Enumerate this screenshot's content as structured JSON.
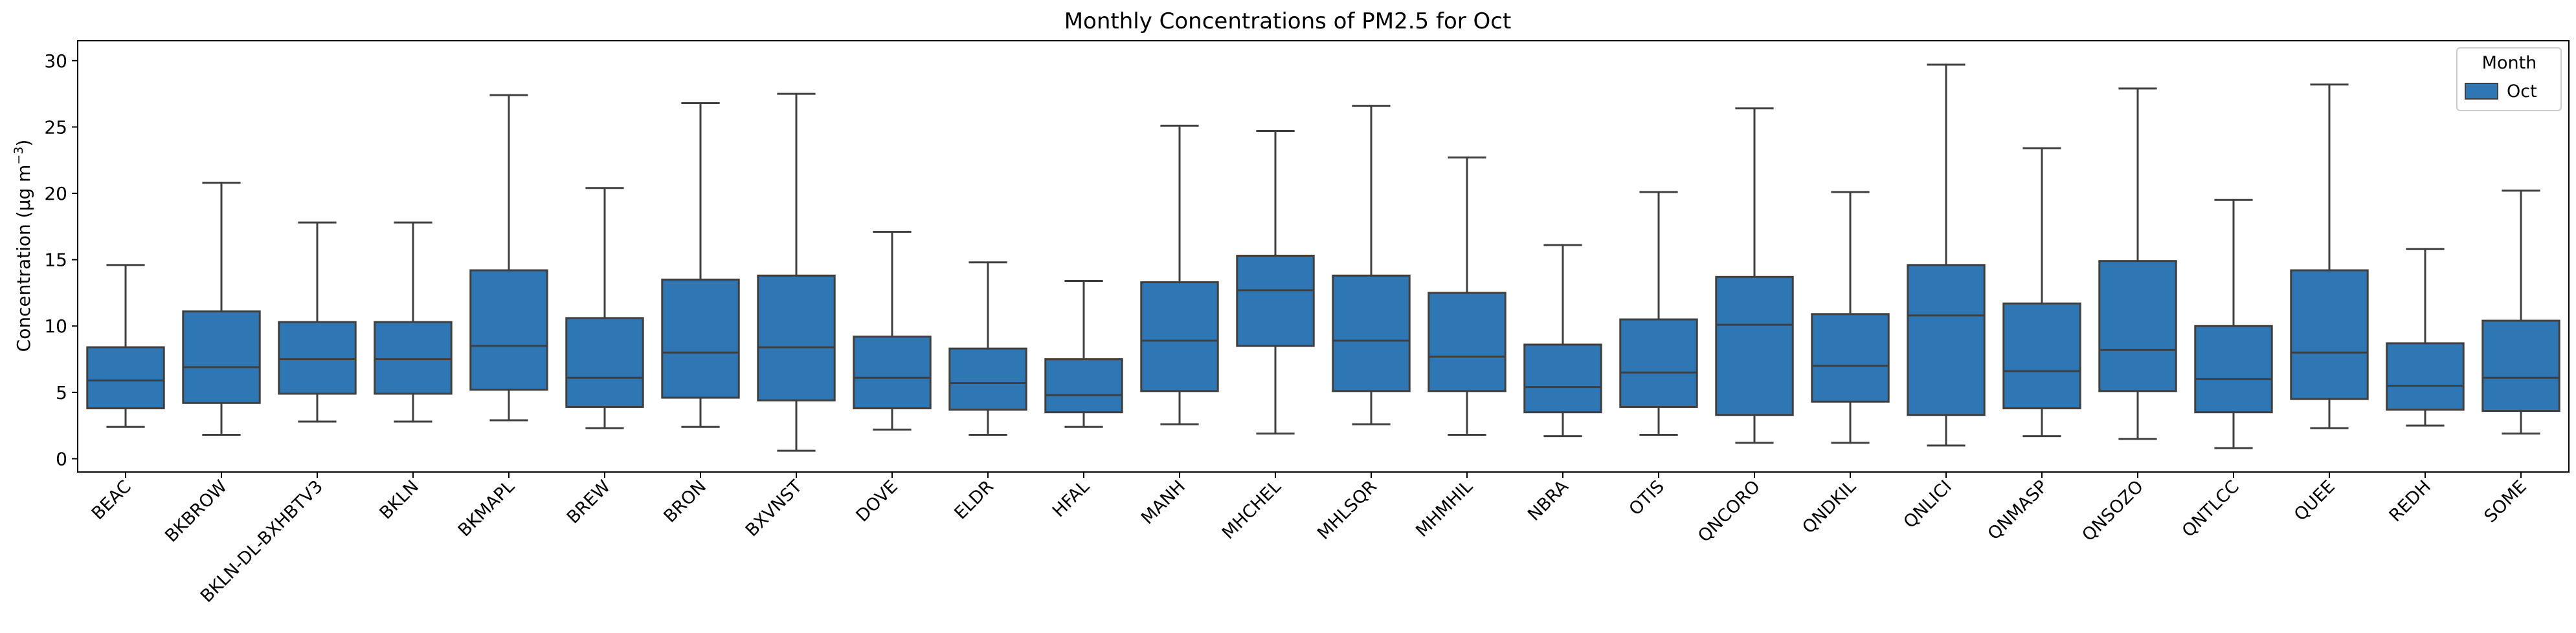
{
  "chart_data": {
    "type": "boxplot",
    "title": "Monthly Concentrations of PM2.5 for Oct",
    "xlabel": "",
    "ylabel": "Concentration (μg m⁻³)",
    "ylabel_parts": {
      "main": "Concentration (μg m",
      "sup": "−3",
      "close": ")"
    },
    "ylim": [
      -1,
      31.5
    ],
    "yticks": [
      0,
      5,
      10,
      15,
      20,
      25,
      30
    ],
    "grid": false,
    "legend": {
      "title": "Month",
      "entries": [
        "Oct"
      ],
      "placement": "top-right"
    },
    "series": [
      {
        "name": "Oct",
        "color": "#2f77b4",
        "boxes": [
          {
            "category": "BEAC",
            "whislo": 2.4,
            "q1": 3.8,
            "med": 5.9,
            "q3": 8.4,
            "whishi": 14.6
          },
          {
            "category": "BKBROW",
            "whislo": 1.8,
            "q1": 4.2,
            "med": 6.9,
            "q3": 11.1,
            "whishi": 20.8
          },
          {
            "category": "BKLN-DL-BXHBTV3",
            "whislo": 2.8,
            "q1": 4.9,
            "med": 7.5,
            "q3": 10.3,
            "whishi": 17.8
          },
          {
            "category": "BKLN",
            "whislo": 2.8,
            "q1": 4.9,
            "med": 7.5,
            "q3": 10.3,
            "whishi": 17.8
          },
          {
            "category": "BKMAPL",
            "whislo": 2.9,
            "q1": 5.2,
            "med": 8.5,
            "q3": 14.2,
            "whishi": 27.4
          },
          {
            "category": "BREW",
            "whislo": 2.3,
            "q1": 3.9,
            "med": 6.1,
            "q3": 10.6,
            "whishi": 20.4
          },
          {
            "category": "BRON",
            "whislo": 2.4,
            "q1": 4.6,
            "med": 8.0,
            "q3": 13.5,
            "whishi": 26.8
          },
          {
            "category": "BXVNST",
            "whislo": 0.6,
            "q1": 4.4,
            "med": 8.4,
            "q3": 13.8,
            "whishi": 27.5
          },
          {
            "category": "DOVE",
            "whislo": 2.2,
            "q1": 3.8,
            "med": 6.1,
            "q3": 9.2,
            "whishi": 17.1
          },
          {
            "category": "ELDR",
            "whislo": 1.8,
            "q1": 3.7,
            "med": 5.7,
            "q3": 8.3,
            "whishi": 14.8
          },
          {
            "category": "HFAL",
            "whislo": 2.4,
            "q1": 3.5,
            "med": 4.8,
            "q3": 7.5,
            "whishi": 13.4
          },
          {
            "category": "MANH",
            "whislo": 2.6,
            "q1": 5.1,
            "med": 8.9,
            "q3": 13.3,
            "whishi": 25.1
          },
          {
            "category": "MHCHEL",
            "whislo": 1.9,
            "q1": 8.5,
            "med": 12.7,
            "q3": 15.3,
            "whishi": 24.7
          },
          {
            "category": "MHLSQR",
            "whislo": 2.6,
            "q1": 5.1,
            "med": 8.9,
            "q3": 13.8,
            "whishi": 26.6
          },
          {
            "category": "MHMHIL",
            "whislo": 1.8,
            "q1": 5.1,
            "med": 7.7,
            "q3": 12.5,
            "whishi": 22.7
          },
          {
            "category": "NBRA",
            "whislo": 1.7,
            "q1": 3.5,
            "med": 5.4,
            "q3": 8.6,
            "whishi": 16.1
          },
          {
            "category": "OTIS",
            "whislo": 1.8,
            "q1": 3.9,
            "med": 6.5,
            "q3": 10.5,
            "whishi": 20.1
          },
          {
            "category": "QNCORO",
            "whislo": 1.2,
            "q1": 3.3,
            "med": 10.1,
            "q3": 13.7,
            "whishi": 26.4
          },
          {
            "category": "QNDKIL",
            "whislo": 1.2,
            "q1": 4.3,
            "med": 7.0,
            "q3": 10.9,
            "whishi": 20.1
          },
          {
            "category": "QNLICI",
            "whislo": 1.0,
            "q1": 3.3,
            "med": 10.8,
            "q3": 14.6,
            "whishi": 29.7
          },
          {
            "category": "QNMASP",
            "whislo": 1.7,
            "q1": 3.8,
            "med": 6.6,
            "q3": 11.7,
            "whishi": 23.4
          },
          {
            "category": "QNSOZO",
            "whislo": 1.5,
            "q1": 5.1,
            "med": 8.2,
            "q3": 14.9,
            "whishi": 27.9
          },
          {
            "category": "QNTLCC",
            "whislo": 0.8,
            "q1": 3.5,
            "med": 6.0,
            "q3": 10.0,
            "whishi": 19.5
          },
          {
            "category": "QUEE",
            "whislo": 2.3,
            "q1": 4.5,
            "med": 8.0,
            "q3": 14.2,
            "whishi": 28.2
          },
          {
            "category": "REDH",
            "whislo": 2.5,
            "q1": 3.7,
            "med": 5.5,
            "q3": 8.7,
            "whishi": 15.8
          },
          {
            "category": "SOME",
            "whislo": 1.9,
            "q1": 3.6,
            "med": 6.1,
            "q3": 10.4,
            "whishi": 20.2
          }
        ]
      }
    ]
  }
}
